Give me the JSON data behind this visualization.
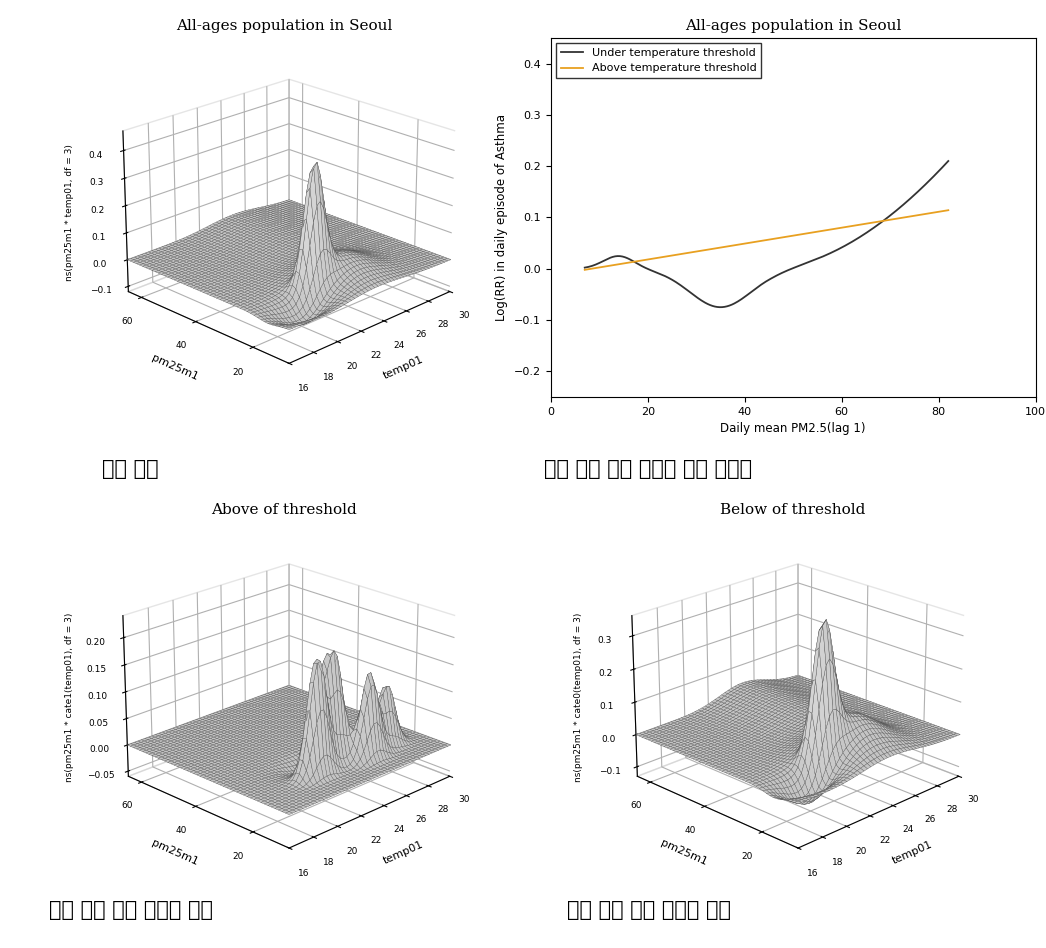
{
  "title_topleft": "All-ages population in Seoul",
  "title_topright": "All-ages population in Seoul",
  "title_bottomleft": "Above of threshold",
  "title_bottomright": "Below of threshold",
  "subtitle_topleft": "전체 범위",
  "subtitle_topright": "기온 역치 수준 구분에 따른 관련성",
  "subtitle_bottomleft": "기온 역치 수준 이상의 범위",
  "subtitle_bottomright": "기온 역치 수준 미만의 범위",
  "ylabel_topleft": "ns(pm25m1 * temp01, df = 3)",
  "ylabel_bottomleft": "ns(pm25m1 * cate1(temp01), df = 3)",
  "ylabel_bottomright": "ns(pm25m1 * cate0(temp01), df = 3)",
  "xlabel_3d": "pm25m1",
  "ylabel_3d": "temp01",
  "xlabel_2d": "Daily mean PM2.5(lag 1)",
  "ylabel_2d": "Log(RR) in daily episode of Asthma",
  "line1_label": "Under temperature threshold",
  "line2_label": "Above temperature threshold",
  "line1_color": "#333333",
  "line2_color": "#E8A020",
  "background_color": "#ffffff"
}
